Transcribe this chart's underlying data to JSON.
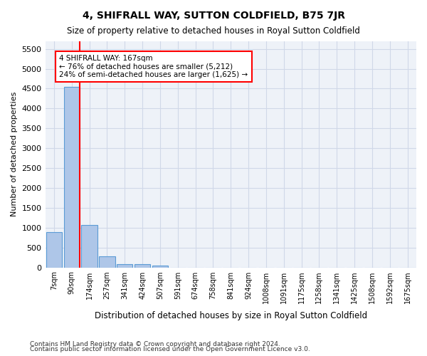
{
  "title": "4, SHIFRALL WAY, SUTTON COLDFIELD, B75 7JR",
  "subtitle": "Size of property relative to detached houses in Royal Sutton Coldfield",
  "xlabel": "Distribution of detached houses by size in Royal Sutton Coldfield",
  "ylabel": "Number of detached properties",
  "footer_line1": "Contains HM Land Registry data © Crown copyright and database right 2024.",
  "footer_line2": "Contains public sector information licensed under the Open Government Licence v3.0.",
  "bin_labels": [
    "7sqm",
    "90sqm",
    "174sqm",
    "257sqm",
    "341sqm",
    "424sqm",
    "507sqm",
    "591sqm",
    "674sqm",
    "758sqm",
    "841sqm",
    "924sqm",
    "1008sqm",
    "1091sqm",
    "1175sqm",
    "1258sqm",
    "1341sqm",
    "1425sqm",
    "1508sqm",
    "1592sqm",
    "1675sqm"
  ],
  "bar_values": [
    880,
    4550,
    1060,
    280,
    90,
    80,
    50,
    0,
    0,
    0,
    0,
    0,
    0,
    0,
    0,
    0,
    0,
    0,
    0,
    0,
    0
  ],
  "bar_color": "#aec6e8",
  "bar_edge_color": "#5b9bd5",
  "vline_pos": 1.45,
  "vline_color": "red",
  "annotation_text": "4 SHIFRALL WAY: 167sqm\n← 76% of detached houses are smaller (5,212)\n24% of semi-detached houses are larger (1,625) →",
  "ylim": [
    0,
    5700
  ],
  "yticks": [
    0,
    500,
    1000,
    1500,
    2000,
    2500,
    3000,
    3500,
    4000,
    4500,
    5000,
    5500
  ],
  "ax_facecolor": "#eef2f8",
  "background_color": "#ffffff",
  "grid_color": "#d0d8e8"
}
